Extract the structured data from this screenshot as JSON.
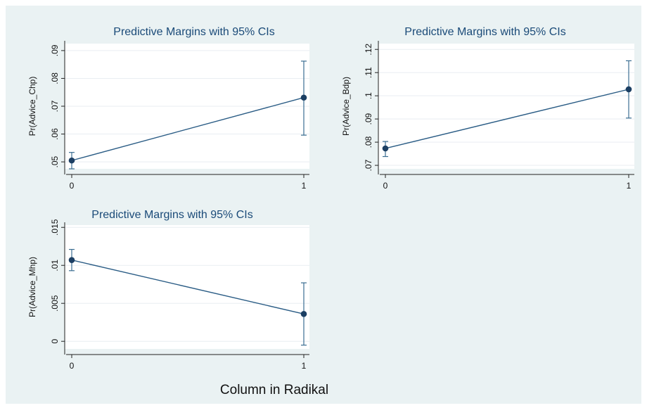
{
  "figure": {
    "shared_xlabel": "Column in Radikal",
    "background_color": "#eaf2f3",
    "plot_background_color": "#ffffff",
    "line_color": "#2a5c85",
    "marker_color": "#1c3f63",
    "ci_color": "#3b6e92",
    "title_color": "#1a4a78",
    "grid_color": "#e9eef2"
  },
  "chart_data": [
    {
      "type": "line",
      "title": "Predictive Margins with 95% CIs",
      "xlabel": "",
      "ylabel": "Pr(Advice_Chp)",
      "x": [
        0,
        1
      ],
      "x_tick_labels": [
        "0",
        "1"
      ],
      "series": [
        {
          "values": [
            0.0505,
            0.0731
          ],
          "ci_low": [
            0.0475,
            0.0596
          ],
          "ci_high": [
            0.0534,
            0.0862
          ]
        }
      ],
      "ylim": [
        0.0475,
        0.0925
      ],
      "y_ticks": [
        0.05,
        0.06,
        0.07,
        0.08,
        0.09
      ],
      "y_tick_labels": [
        ".05",
        ".06",
        ".07",
        ".08",
        ".09"
      ],
      "grid": true
    },
    {
      "type": "line",
      "title": "Predictive Margins with 95% CIs",
      "xlabel": "",
      "ylabel": "Pr(Advice_Bdp)",
      "x": [
        0,
        1
      ],
      "x_tick_labels": [
        "0",
        "1"
      ],
      "series": [
        {
          "values": [
            0.0773,
            0.1028
          ],
          "ci_low": [
            0.0738,
            0.0904
          ],
          "ci_high": [
            0.0803,
            0.1151
          ]
        }
      ],
      "ylim": [
        0.0685,
        0.1225
      ],
      "y_ticks": [
        0.07,
        0.08,
        0.09,
        0.1,
        0.11,
        0.12
      ],
      "y_tick_labels": [
        ".07",
        ".08",
        ".09",
        ".1",
        ".11",
        ".12"
      ],
      "grid": true
    },
    {
      "type": "line",
      "title": "Predictive Margins with 95% CIs",
      "xlabel": "",
      "ylabel": "Pr(Advice_Mhp)",
      "x": [
        0,
        1
      ],
      "x_tick_labels": [
        "0",
        "1"
      ],
      "series": [
        {
          "values": [
            0.0107,
            0.0036
          ],
          "ci_low": [
            0.0093,
            -0.0005
          ],
          "ci_high": [
            0.0121,
            0.0077
          ]
        }
      ],
      "ylim": [
        -0.001,
        0.0153
      ],
      "y_ticks": [
        0,
        0.005,
        0.01,
        0.015
      ],
      "y_tick_labels": [
        "0",
        ".005",
        ".01",
        ".015"
      ],
      "grid": true
    }
  ]
}
